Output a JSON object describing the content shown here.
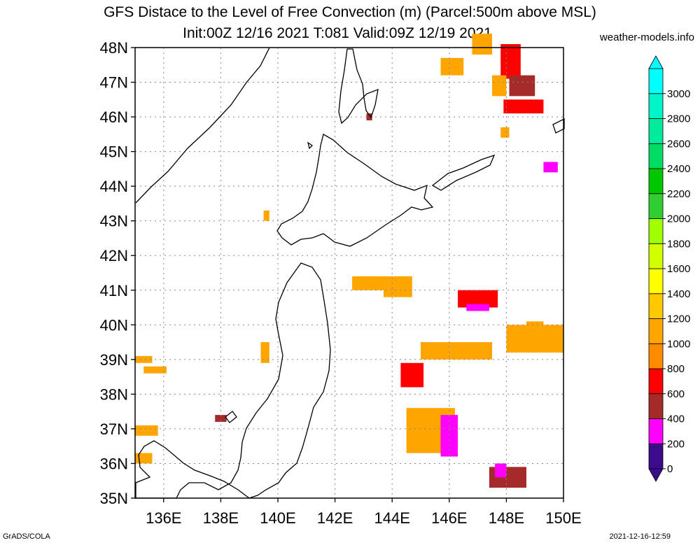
{
  "title_line1": "GFS Distace to the Level of Free Convection (m) (Parcel:500m above MSL)",
  "title_line2": "Init:00Z 12/16 2021 T:081 Valid:09Z 12/19 2021",
  "site": "weather-models.info",
  "footer_left": "GrADS/COLA",
  "footer_right": "2021-12-16-12:59",
  "map": {
    "lon_range": [
      135,
      150
    ],
    "lat_range": [
      35,
      48
    ],
    "lon_ticks": [
      "136E",
      "138E",
      "140E",
      "142E",
      "144E",
      "146E",
      "148E",
      "150E"
    ],
    "lat_ticks": [
      "35N",
      "36N",
      "37N",
      "38N",
      "39N",
      "40N",
      "41N",
      "42N",
      "43N",
      "44N",
      "45N",
      "46N",
      "47N",
      "48N"
    ]
  },
  "colorbar": {
    "labels": [
      "0",
      "200",
      "400",
      "600",
      "800",
      "1000",
      "1200",
      "1400",
      "1600",
      "1800",
      "2000",
      "2200",
      "2400",
      "2600",
      "2800",
      "3000"
    ],
    "colors": [
      "#3c0a8c",
      "#ff00ff",
      "#a52a2a",
      "#ff0000",
      "#ff8c00",
      "#ffa500",
      "#ffc800",
      "#ffff00",
      "#d2ff00",
      "#a0ff00",
      "#32cd32",
      "#00c800",
      "#00dc64",
      "#00eb9b",
      "#00f5c8",
      "#00ffff"
    ]
  },
  "regions": [
    {
      "lat": 47.8,
      "lon": 146.8,
      "w": 0.7,
      "h": 0.6,
      "c": "#ffa500"
    },
    {
      "lat": 47.1,
      "lon": 147.8,
      "w": 0.7,
      "h": 1.0,
      "c": "#ff0000"
    },
    {
      "lat": 46.6,
      "lon": 148.1,
      "w": 0.9,
      "h": 0.6,
      "c": "#a52a2a"
    },
    {
      "lat": 46.6,
      "lon": 147.5,
      "w": 0.5,
      "h": 0.6,
      "c": "#ffa500"
    },
    {
      "lat": 46.1,
      "lon": 147.9,
      "w": 1.4,
      "h": 0.4,
      "c": "#ff0000"
    },
    {
      "lat": 47.2,
      "lon": 145.7,
      "w": 0.8,
      "h": 0.5,
      "c": "#ffa500"
    },
    {
      "lat": 45.4,
      "lon": 147.8,
      "w": 0.3,
      "h": 0.3,
      "c": "#ffa500"
    },
    {
      "lat": 45.9,
      "lon": 143.1,
      "w": 0.2,
      "h": 0.2,
      "c": "#a52a2a"
    },
    {
      "lat": 44.4,
      "lon": 149.3,
      "w": 0.5,
      "h": 0.3,
      "c": "#ff00ff"
    },
    {
      "lat": 41.0,
      "lon": 142.6,
      "w": 1.4,
      "h": 0.4,
      "c": "#ffa500"
    },
    {
      "lat": 40.8,
      "lon": 143.7,
      "w": 1.0,
      "h": 0.6,
      "c": "#ffa500"
    },
    {
      "lat": 40.5,
      "lon": 146.3,
      "w": 1.4,
      "h": 0.5,
      "c": "#ff0000"
    },
    {
      "lat": 40.4,
      "lon": 146.6,
      "w": 0.8,
      "h": 0.2,
      "c": "#ff00ff"
    },
    {
      "lat": 39.2,
      "lon": 148.0,
      "w": 2.0,
      "h": 0.8,
      "c": "#ffa500"
    },
    {
      "lat": 39.0,
      "lon": 145.0,
      "w": 2.5,
      "h": 0.5,
      "c": "#ffa500"
    },
    {
      "lat": 38.2,
      "lon": 144.3,
      "w": 0.8,
      "h": 0.7,
      "c": "#ff0000"
    },
    {
      "lat": 36.3,
      "lon": 144.5,
      "w": 1.7,
      "h": 1.3,
      "c": "#ffa500"
    },
    {
      "lat": 36.2,
      "lon": 145.7,
      "w": 0.6,
      "h": 1.2,
      "c": "#ff00ff"
    },
    {
      "lat": 35.3,
      "lon": 147.4,
      "w": 1.3,
      "h": 0.6,
      "c": "#a52a2a"
    },
    {
      "lat": 35.6,
      "lon": 147.6,
      "w": 0.4,
      "h": 0.4,
      "c": "#ff00ff"
    },
    {
      "lat": 39.7,
      "lon": 148.7,
      "w": 0.6,
      "h": 0.4,
      "c": "#ffa500"
    },
    {
      "lat": 38.9,
      "lon": 135.0,
      "w": 0.6,
      "h": 0.2,
      "c": "#ffa500"
    },
    {
      "lat": 38.6,
      "lon": 135.3,
      "w": 0.8,
      "h": 0.2,
      "c": "#ffa500"
    },
    {
      "lat": 36.8,
      "lon": 135.0,
      "w": 0.8,
      "h": 0.3,
      "c": "#ffa500"
    },
    {
      "lat": 36.0,
      "lon": 135.0,
      "w": 0.6,
      "h": 0.3,
      "c": "#ffa500"
    },
    {
      "lat": 37.2,
      "lon": 137.8,
      "w": 0.4,
      "h": 0.2,
      "c": "#a52a2a"
    },
    {
      "lat": 43.0,
      "lon": 139.5,
      "w": 0.2,
      "h": 0.3,
      "c": "#ffa500"
    },
    {
      "lat": 38.9,
      "lon": 139.4,
      "w": 0.3,
      "h": 0.6,
      "c": "#ffa500"
    }
  ]
}
